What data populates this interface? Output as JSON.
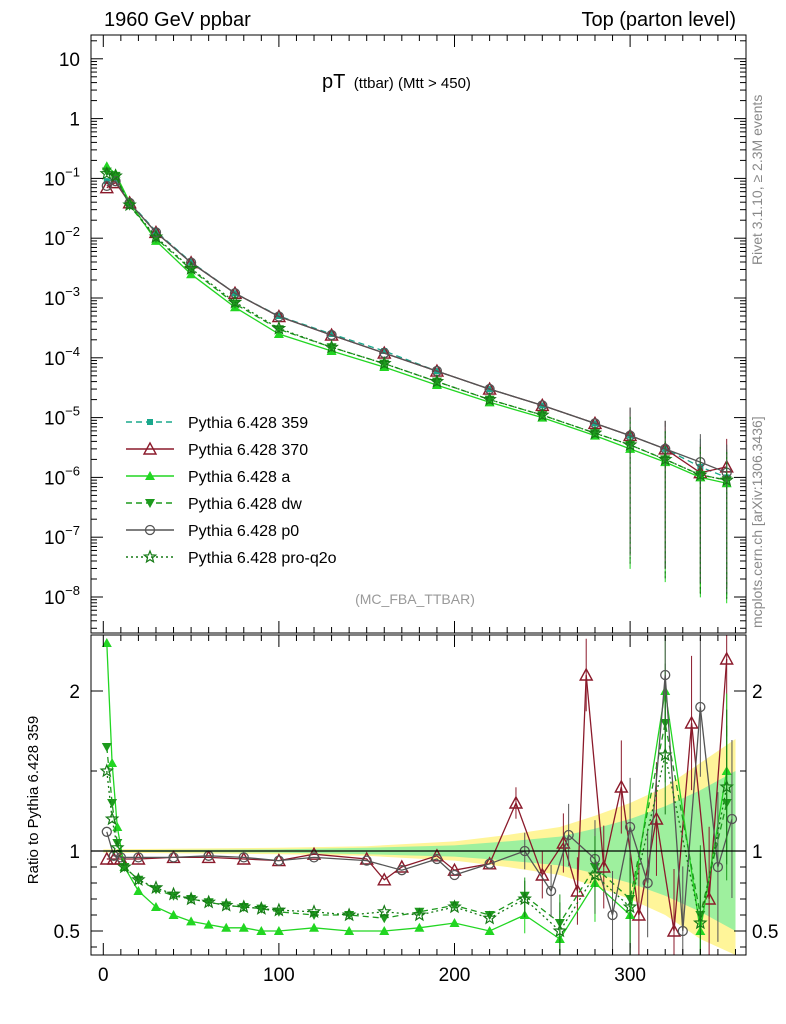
{
  "header": {
    "left": "1960 GeV ppbar",
    "right": "Top (parton level)"
  },
  "side_labels": {
    "rivet": "Rivet 3.1.10, ≥ 2.3M events",
    "mcplots": "mcplots.cern.ch [arXiv:1306.3436]"
  },
  "chart_data": [
    {
      "type": "line",
      "title_main": "pT",
      "title_sub": "(ttbar) (Mtt > 450)",
      "annotation": "(MC_FBA_TTBAR)",
      "yscale": "log",
      "xlim": [
        -7,
        366
      ],
      "ylim": [
        2.5e-09,
        25
      ],
      "y_ticks": [
        {
          "v": 10,
          "label": "10"
        },
        {
          "v": 1,
          "label": "1"
        },
        {
          "v": 0.1,
          "base": "10",
          "exp": "−1"
        },
        {
          "v": 0.01,
          "base": "10",
          "exp": "−2"
        },
        {
          "v": 0.001,
          "base": "10",
          "exp": "−3"
        },
        {
          "v": 0.0001,
          "base": "10",
          "exp": "−4"
        },
        {
          "v": 1e-05,
          "base": "10",
          "exp": "−5"
        },
        {
          "v": 1e-06,
          "base": "10",
          "exp": "−6"
        },
        {
          "v": 1e-07,
          "base": "10",
          "exp": "−7"
        },
        {
          "v": 1e-08,
          "base": "10",
          "exp": "−8"
        }
      ],
      "legend": "lower-left",
      "series": [
        {
          "name": "Pythia 6.428 359",
          "color": "#1aa88c",
          "marker": "square",
          "dash": "6,4",
          "x": [
            2,
            7,
            15,
            30,
            50,
            75,
            100,
            130,
            160,
            190,
            220,
            250,
            280,
            300,
            320,
            340,
            355
          ],
          "values": [
            0.09,
            0.1,
            0.04,
            0.013,
            0.004,
            0.0012,
            0.0005,
            0.00025,
            0.00013,
            6e-05,
            3e-05,
            1.6e-05,
            8e-06,
            5e-06,
            3e-06,
            1.5e-06,
            1e-06
          ]
        },
        {
          "name": "Pythia 6.428 370",
          "color": "#8b1a2b",
          "marker": "triangle-open",
          "dash": "",
          "x": [
            2,
            7,
            15,
            30,
            50,
            75,
            100,
            130,
            160,
            190,
            220,
            250,
            280,
            300,
            320,
            340,
            355
          ],
          "values": [
            0.07,
            0.085,
            0.039,
            0.0125,
            0.0039,
            0.0012,
            0.00049,
            0.00024,
            0.00012,
            6e-05,
            3e-05,
            1.6e-05,
            8e-06,
            5e-06,
            3e-06,
            1.2e-06,
            1.5e-06
          ]
        },
        {
          "name": "Pythia 6.428 a",
          "color": "#22d622",
          "marker": "triangle",
          "dash": "",
          "x": [
            2,
            7,
            15,
            30,
            50,
            75,
            100,
            130,
            160,
            190,
            220,
            250,
            280,
            300,
            320,
            340,
            355
          ],
          "values": [
            0.16,
            0.12,
            0.04,
            0.009,
            0.0025,
            0.0007,
            0.00025,
            0.00013,
            7e-05,
            3.5e-05,
            1.8e-05,
            1e-05,
            5e-06,
            3e-06,
            1.8e-06,
            1e-06,
            8e-07
          ]
        },
        {
          "name": "Pythia 6.428 dw",
          "color": "#1d9a1d",
          "marker": "triangle-down",
          "dash": "6,4",
          "x": [
            2,
            7,
            15,
            30,
            50,
            75,
            100,
            130,
            160,
            190,
            220,
            250,
            280,
            300,
            320,
            340,
            355
          ],
          "values": [
            0.13,
            0.11,
            0.035,
            0.01,
            0.003,
            0.0008,
            0.0003,
            0.00015,
            8e-05,
            4e-05,
            2e-05,
            1.1e-05,
            5.5e-06,
            3.5e-06,
            2e-06,
            1.1e-06,
            9e-07
          ]
        },
        {
          "name": "Pythia 6.428 p0",
          "color": "#555555",
          "marker": "circle-open",
          "dash": "",
          "x": [
            2,
            7,
            15,
            30,
            50,
            75,
            100,
            130,
            160,
            190,
            220,
            250,
            280,
            300,
            320,
            340,
            355
          ],
          "values": [
            0.075,
            0.09,
            0.039,
            0.0125,
            0.0039,
            0.0012,
            0.00049,
            0.00024,
            0.00012,
            6e-05,
            3e-05,
            1.6e-05,
            8e-06,
            5e-06,
            3e-06,
            1.8e-06,
            1.2e-06
          ]
        },
        {
          "name": "Pythia 6.428 pro-q2o",
          "color": "#157a15",
          "marker": "star-open",
          "dash": "2,3",
          "x": [
            2,
            7,
            15,
            30,
            50,
            75,
            100,
            130,
            160,
            190,
            220,
            250,
            280,
            300,
            320,
            340,
            355
          ],
          "values": [
            0.12,
            0.11,
            0.036,
            0.0105,
            0.0031,
            0.00085,
            0.00031,
            0.00015,
            8e-05,
            4e-05,
            2e-05,
            1.1e-05,
            5.5e-06,
            3.5e-06,
            2e-06,
            1.1e-06,
            9e-07
          ]
        }
      ]
    },
    {
      "type": "line",
      "ylabel": "Ratio to Pythia 6.428 359",
      "xlim": [
        -7,
        366
      ],
      "ylim": [
        0.35,
        2.35
      ],
      "x_ticks": [
        0,
        100,
        200,
        300
      ],
      "y_ticks": [
        {
          "v": 0.5,
          "label": "0.5"
        },
        {
          "v": 1,
          "label": "1"
        },
        {
          "v": 2,
          "label": "2"
        }
      ],
      "reference_line": 1,
      "band": {
        "x": [
          0,
          100,
          150,
          200,
          230,
          260,
          280,
          300,
          320,
          340,
          360
        ],
        "yellow_half": [
          0.01,
          0.02,
          0.03,
          0.06,
          0.1,
          0.15,
          0.22,
          0.3,
          0.4,
          0.55,
          0.7
        ],
        "green_half": [
          0.005,
          0.01,
          0.02,
          0.035,
          0.06,
          0.09,
          0.14,
          0.2,
          0.28,
          0.38,
          0.5
        ]
      },
      "series": [
        {
          "name": "Pythia 6.428 370",
          "x": [
            2,
            6,
            10,
            20,
            40,
            60,
            80,
            100,
            120,
            150,
            160,
            170,
            190,
            200,
            220,
            235,
            250,
            262,
            270,
            275,
            285,
            295,
            305,
            315,
            325,
            335,
            345,
            355
          ],
          "values": [
            0.95,
            0.95,
            0.95,
            0.95,
            0.96,
            0.96,
            0.95,
            0.94,
            0.98,
            0.95,
            0.82,
            0.9,
            0.97,
            0.88,
            0.92,
            1.3,
            0.85,
            1.05,
            0.75,
            2.1,
            0.9,
            1.4,
            0.6,
            1.2,
            0.5,
            1.8,
            0.7,
            2.2
          ]
        },
        {
          "name": "Pythia 6.428 a",
          "x": [
            2,
            5,
            8,
            12,
            20,
            30,
            40,
            50,
            60,
            70,
            80,
            90,
            100,
            120,
            140,
            160,
            180,
            200,
            220,
            240,
            260,
            280,
            300,
            320,
            340,
            355
          ],
          "values": [
            2.3,
            1.55,
            1.15,
            0.9,
            0.75,
            0.65,
            0.6,
            0.56,
            0.54,
            0.52,
            0.52,
            0.5,
            0.5,
            0.52,
            0.5,
            0.5,
            0.52,
            0.55,
            0.5,
            0.6,
            0.45,
            0.8,
            0.6,
            2.0,
            0.5,
            1.5
          ]
        },
        {
          "name": "Pythia 6.428 dw",
          "x": [
            2,
            5,
            8,
            12,
            20,
            30,
            40,
            50,
            60,
            70,
            80,
            90,
            100,
            120,
            140,
            160,
            180,
            200,
            220,
            240,
            260,
            280,
            300,
            320,
            340,
            355
          ],
          "values": [
            1.65,
            1.3,
            1.05,
            0.9,
            0.82,
            0.76,
            0.72,
            0.7,
            0.68,
            0.66,
            0.65,
            0.64,
            0.62,
            0.6,
            0.6,
            0.58,
            0.62,
            0.66,
            0.6,
            0.72,
            0.55,
            0.9,
            0.7,
            1.8,
            0.6,
            1.3
          ]
        },
        {
          "name": "Pythia 6.428 p0",
          "x": [
            2,
            6,
            10,
            20,
            40,
            60,
            80,
            100,
            120,
            150,
            170,
            190,
            200,
            220,
            240,
            255,
            265,
            280,
            290,
            300,
            310,
            320,
            330,
            340,
            350,
            358
          ],
          "values": [
            1.12,
            0.97,
            0.96,
            0.96,
            0.96,
            0.97,
            0.96,
            0.94,
            0.96,
            0.94,
            0.88,
            0.95,
            0.85,
            0.92,
            1.0,
            0.75,
            1.1,
            0.95,
            0.6,
            1.15,
            0.8,
            2.1,
            0.5,
            1.9,
            0.9,
            1.2
          ]
        },
        {
          "name": "Pythia 6.428 pro-q2o",
          "x": [
            2,
            5,
            8,
            12,
            20,
            30,
            40,
            50,
            60,
            70,
            80,
            90,
            100,
            120,
            140,
            160,
            180,
            200,
            220,
            240,
            260,
            280,
            300,
            320,
            340,
            355
          ],
          "values": [
            1.5,
            1.2,
            1.02,
            0.9,
            0.82,
            0.77,
            0.73,
            0.7,
            0.68,
            0.66,
            0.65,
            0.64,
            0.63,
            0.62,
            0.6,
            0.62,
            0.6,
            0.65,
            0.58,
            0.7,
            0.5,
            0.85,
            0.65,
            1.6,
            0.55,
            1.4
          ]
        }
      ]
    }
  ]
}
